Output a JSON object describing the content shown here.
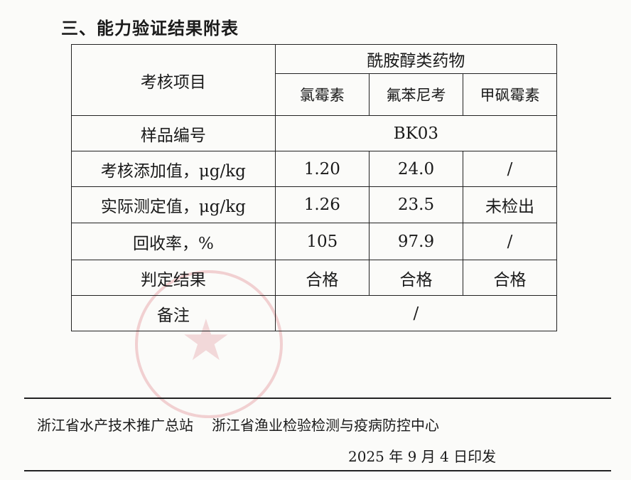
{
  "heading": "三、能力验证结果附表",
  "table": {
    "item_header": "考核项目",
    "group_header": "酰胺醇类药物",
    "drugs": [
      "氯霉素",
      "氟苯尼考",
      "甲砜霉素"
    ],
    "sample_label": "样品编号",
    "sample_id": "BK03",
    "rows": [
      {
        "label": "考核添加值，μg/kg",
        "values": [
          "1.20",
          "24.0",
          "/"
        ]
      },
      {
        "label": "实际测定值，μg/kg",
        "values": [
          "1.26",
          "23.5",
          "未检出"
        ]
      },
      {
        "label": "回收率，%",
        "values": [
          "105",
          "97.9",
          "/"
        ]
      },
      {
        "label": "判定结果",
        "values": [
          "合格",
          "合格",
          "合格"
        ]
      }
    ],
    "remark_label": "备注",
    "remark_value": "/"
  },
  "footer": {
    "org1": "浙江省水产技术推广总站",
    "org2": "浙江省渔业检验检测与疫病防控中心",
    "date": "2025 年 9 月 4 日印发"
  },
  "stamp_color": "#d2505a"
}
